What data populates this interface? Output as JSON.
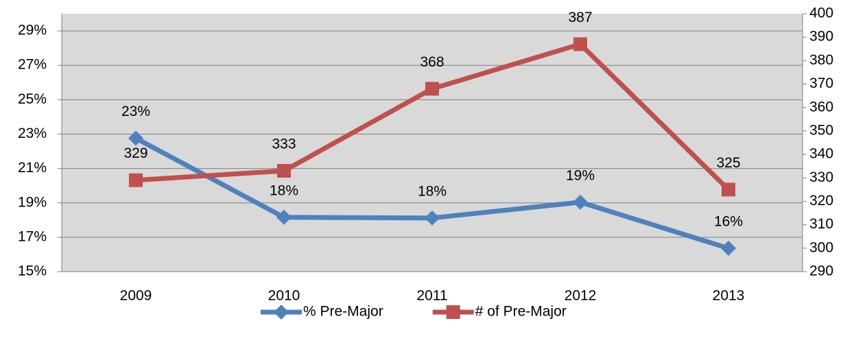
{
  "chart_data": {
    "type": "line",
    "categories": [
      "2009",
      "2010",
      "2011",
      "2012",
      "2013"
    ],
    "series": [
      {
        "name": "% Pre-Major",
        "color": "#4f81bd",
        "marker": "diamond",
        "values": [
          22.76,
          18.16,
          18.12,
          19.04,
          16.36
        ],
        "value_labels": [
          "23%",
          "18%",
          "18%",
          "19%",
          "16%"
        ]
      },
      {
        "name": "# of Pre-Major",
        "color": "#c0504d",
        "marker": "square",
        "axis": "y2",
        "values": [
          329,
          333,
          368,
          387,
          325
        ]
      }
    ],
    "ylim": [
      15,
      30
    ],
    "yticks": [
      {
        "value": 15,
        "label": "15%"
      },
      {
        "value": 17,
        "label": "17%"
      },
      {
        "value": 19,
        "label": "19%"
      },
      {
        "value": 21,
        "label": "21%"
      },
      {
        "value": 23,
        "label": "23%"
      },
      {
        "value": 25,
        "label": "25%"
      },
      {
        "value": 27,
        "label": "27%"
      },
      {
        "value": 29,
        "label": "29%"
      }
    ],
    "y2lim": [
      290,
      400
    ],
    "y2ticks": [
      290,
      300,
      310,
      320,
      330,
      340,
      350,
      360,
      370,
      380,
      390,
      400
    ],
    "grid": true,
    "legend": "bottom",
    "plot_background": "#d9d9d9"
  }
}
